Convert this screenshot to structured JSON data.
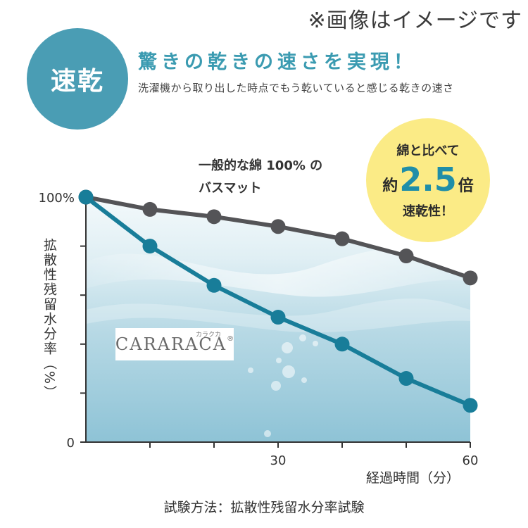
{
  "top_note": "※画像はイメージです",
  "badge": "速乾",
  "headline": "驚きの乾きの速さを実現！",
  "subline": "洗濯機から取り出した時点でもう乾いていると感じる乾きの速さ",
  "bubble": {
    "line1": "綿と比べて",
    "prefix": "約",
    "value": "2.5",
    "suffix": "倍",
    "line3": "速乾性！"
  },
  "logo": {
    "text": "CARARACA",
    "reg": "®",
    "kana": "カラクカ"
  },
  "method": "試験方法：拡散性残留水分率試験",
  "colors": {
    "cotton": "#545457",
    "cararaca": "#187d99",
    "badge": "#4a9db4",
    "bubble": "#fbeb86"
  },
  "chart_data": {
    "type": "line",
    "xlabel": "経過時間（分）",
    "ylabel": "拡散性残留水分率（%）",
    "x_ticks": [
      {
        "value": 30,
        "label": "30"
      },
      {
        "value": 60,
        "label": "60"
      }
    ],
    "y_ticks": [
      {
        "value": 100,
        "label": "100%"
      },
      {
        "value": 0,
        "label": "0"
      }
    ],
    "xlim": [
      0,
      60
    ],
    "ylim": [
      0,
      100
    ],
    "grid": false,
    "series": [
      {
        "name": "一般的な綿 100% のバスマット",
        "name_lines": [
          "一般的な綿 100% の",
          "バスマット"
        ],
        "x": [
          0,
          10,
          20,
          30,
          40,
          50,
          60
        ],
        "y": [
          100,
          95,
          92,
          88,
          83,
          76,
          67
        ]
      },
      {
        "name": "",
        "x": [
          0,
          10,
          20,
          30,
          40,
          50,
          60
        ],
        "y": [
          100,
          80,
          64,
          51,
          40,
          26,
          15
        ]
      }
    ]
  }
}
